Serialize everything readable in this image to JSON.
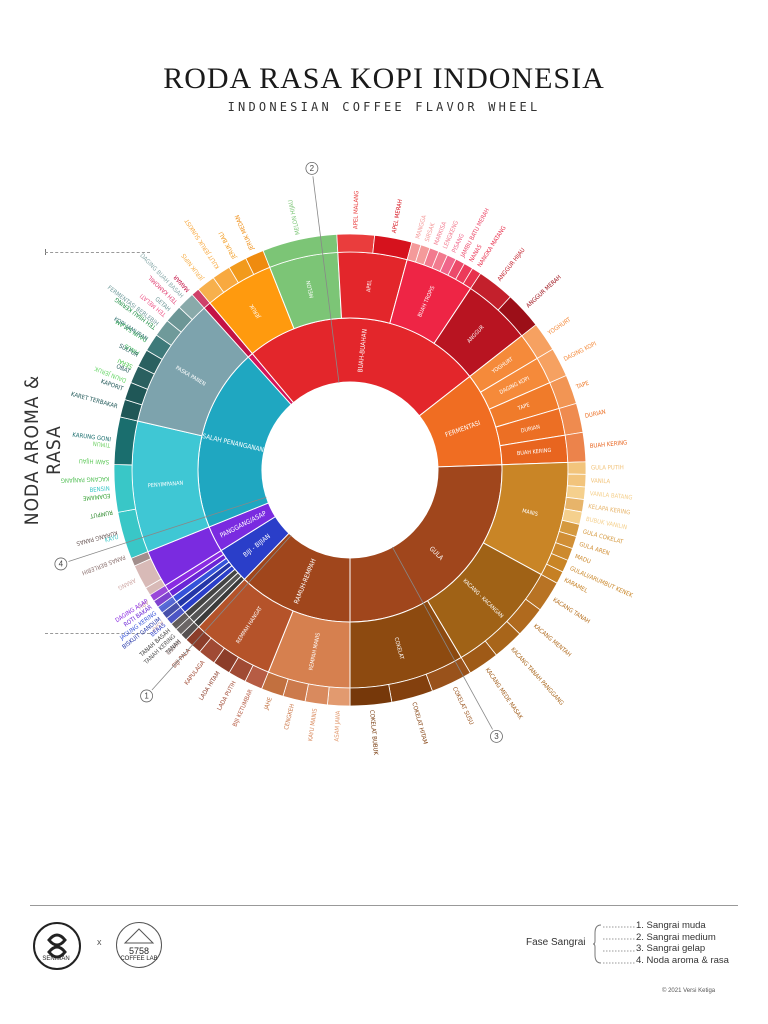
{
  "title": "RODA RASA KOPI INDONESIA",
  "subtitle": "INDONESIAN COFFEE FLAVOR WHEEL",
  "side_label": "NODA AROMA & RASA",
  "legend": {
    "heading": "Fase Sangrai",
    "items": [
      "1. Sangrai muda",
      "2. Sangrai medium",
      "3. Sangrai gelap",
      "4. Noda aroma & rasa"
    ]
  },
  "markers": [
    "1",
    "2",
    "3",
    "4"
  ],
  "logos": {
    "left": "SENIMAN",
    "times": "x",
    "right_num": "5758",
    "right_sub": "COFFEE LAB"
  },
  "copyright": "© 2021 Versi Ketiga",
  "chart_data": {
    "type": "sunburst",
    "title": "RODA RASA KOPI INDONESIA",
    "subtitle": "INDONESIAN COFFEE FLAVOR WHEEL",
    "phases": [
      {
        "phase": "1",
        "color": "#8b1a1a",
        "categories": [
          {
            "name": "PROSES SANGRAI",
            "color": "#5c4a48",
            "span": 36,
            "children": [
              {
                "name": "BAKED",
                "color": "#b99a98",
                "outer": true
              },
              {
                "name": "ASAP",
                "color": "#cfa9a6",
                "outer": true
              },
              {
                "name": "ABU",
                "color": "#cfa9a6",
                "outer": true
              },
              {
                "name": "ARANG",
                "color": "#cfa9a6",
                "outer": true
              },
              {
                "name": "PANAS BERLEBIH",
                "color": "#8c7270"
              },
              {
                "name": "KURANG PANAS",
                "color": "#6b5a58"
              }
            ]
          },
          {
            "name": "REMPAH HIJAU",
            "color": "#23b14a",
            "span": 20,
            "children": [
              {
                "name": "RUMPUT",
                "color": "#2e8b2e"
              },
              {
                "name": "EDAMAME",
                "color": "#3ea53c"
              },
              {
                "name": "KACANG PANJANG",
                "color": "#55c058"
              },
              {
                "name": "SAWI HIJAU",
                "color": "#5fc95a"
              },
              {
                "name": "TIMUN",
                "color": "#76d36c"
              }
            ]
          },
          {
            "name": "SAYUR HIJAU",
            "color": "#3aa93e",
            "span": 12,
            "children": []
          },
          {
            "name": "DAUN HERBAL",
            "color": "#1f9d4f",
            "span": 18,
            "children": [
              {
                "name": "DAUN JERUK",
                "color": "#6ad86a"
              },
              {
                "name": "SERAI",
                "color": "#4cc74c"
              },
              {
                "name": "PINUS",
                "color": "#33b653"
              },
              {
                "name": "DAUN SALAM",
                "color": "#2aa54a"
              },
              {
                "name": "TEH HIJAU KERING",
                "color": "#1d8e43"
              }
            ]
          },
          {
            "name": "BUNGA",
            "color": "#d4145a",
            "span": 12,
            "children": [
              {
                "name": "TEH MELATI",
                "color": "#ee5a8a"
              },
              {
                "name": "TEH KAMOMIL",
                "color": "#e24476"
              },
              {
                "name": "MAWAR",
                "color": "#c41245"
              }
            ]
          }
        ]
      },
      {
        "phase": "2",
        "color": "#ff8c00",
        "categories": [
          {
            "name": "BUAH-BUAHAN",
            "color": "#e3262b",
            "span": 92,
            "children": [
              {
                "name": "JERUK",
                "color": "#ff9a0e",
                "children": [
                  {
                    "name": "JERUK NIPIS",
                    "color": "#f7b04c"
                  },
                  {
                    "name": "KULIT JERUK SUNKIST",
                    "color": "#f8a940"
                  },
                  {
                    "name": "JERUK BALI",
                    "color": "#f29a1c"
                  },
                  {
                    "name": "JERUK MEDAN",
                    "color": "#ef8b0f"
                  }
                ]
              },
              {
                "name": "MELON",
                "color": "#7cc576",
                "children": [
                  {
                    "name": "MELON HIJAU",
                    "color": "#7cc576"
                  }
                ]
              },
              {
                "name": "APEL",
                "color": "#e3262b",
                "children": [
                  {
                    "name": "APEL MALANG",
                    "color": "#ea3d3d"
                  },
                  {
                    "name": "APEL MERAH",
                    "color": "#d6121d"
                  }
                ]
              },
              {
                "name": "BUAH TROPIS",
                "color": "#ee2545",
                "children": [
                  {
                    "name": "MANGGA",
                    "color": "#f49a9a"
                  },
                  {
                    "name": "SIRSAK",
                    "color": "#f49a9a"
                  },
                  {
                    "name": "MARKISA",
                    "color": "#f27a8e"
                  },
                  {
                    "name": "LENGKENG",
                    "color": "#f27a8e"
                  },
                  {
                    "name": "PISANG",
                    "color": "#f0658a"
                  },
                  {
                    "name": "JAMBU BATU MERAH",
                    "color": "#ec4a6a"
                  },
                  {
                    "name": "NANAS",
                    "color": "#ec3a5a"
                  },
                  {
                    "name": "NANGKA MATANG",
                    "color": "#e8314d"
                  }
                ]
              },
              {
                "name": "ANGGUR",
                "color": "#b81421",
                "children": [
                  {
                    "name": "ANGGUR HIJAU",
                    "color": "#c3202c"
                  },
                  {
                    "name": "ANGGUR MERAH",
                    "color": "#9c0f18"
                  }
                ]
              }
            ]
          },
          {
            "name": "FERMENTASI",
            "color": "#f06d22",
            "span": 36,
            "children": [
              {
                "name": "YOGHURT",
                "color": "#f58a3a"
              },
              {
                "name": "DAGING KOPI",
                "color": "#f58a3a"
              },
              {
                "name": "TAPE",
                "color": "#f07b2a"
              },
              {
                "name": "DURIAN",
                "color": "#ec6f24"
              },
              {
                "name": "BUAH KERING",
                "color": "#e8651f"
              }
            ]
          }
        ]
      },
      {
        "phase": "3",
        "color": "#c6781e",
        "categories": [
          {
            "name": "GULA",
            "color": "#a0461c",
            "span": 92,
            "children": [
              {
                "name": "MANIS",
                "color": "#c98526",
                "children": [
                  {
                    "name": "GULA PUTIH",
                    "color": "#f2c47c"
                  },
                  {
                    "name": "VANILA",
                    "color": "#f2c47c"
                  },
                  {
                    "name": "VANILA BATANG",
                    "color": "#f5d08d"
                  },
                  {
                    "name": "KELAPA KERING",
                    "color": "#e7b46a"
                  },
                  {
                    "name": "BUBUK VANILIN",
                    "color": "#f5d08d"
                  },
                  {
                    "name": "GULA COKELAT",
                    "color": "#d5993f"
                  },
                  {
                    "name": "GULA AREN",
                    "color": "#d18f36"
                  },
                  {
                    "name": "MADU",
                    "color": "#cd8a2e"
                  },
                  {
                    "name": "GULALI/ARUMBUT KENEK",
                    "color": "#c98526"
                  },
                  {
                    "name": "KARAMEL",
                    "color": "#c68024"
                  }
                ]
              },
              {
                "name": "KACANG - KACANGAN",
                "color": "#a06216",
                "children": [
                  {
                    "name": "KACANG TANAH",
                    "color": "#b87324"
                  },
                  {
                    "name": "KACANG MENTAH",
                    "color": "#b06a1e"
                  },
                  {
                    "name": "KACANG TANAH PANGGANG",
                    "color": "#a8651a"
                  },
                  {
                    "name": "KACANG MEDE MASAK",
                    "color": "#9f5a17"
                  }
                ]
              },
              {
                "name": "COKELAT",
                "color": "#8d4a10",
                "children": [
                  {
                    "name": "COKELAT SUSU",
                    "color": "#99521b"
                  },
                  {
                    "name": "COKELAT HITAM",
                    "color": "#83400e"
                  },
                  {
                    "name": "COKELAT BUBUK",
                    "color": "#76380a"
                  }
                ]
              }
            ]
          },
          {
            "name": "RAMUH-REMPAH",
            "color": "#a0461c",
            "span": 44,
            "children": [
              {
                "name": "REMPAH MANIS",
                "color": "#d6804f",
                "children": [
                  {
                    "name": "ASAM JAWA",
                    "color": "#e29a6f"
                  },
                  {
                    "name": "KAYU MANIS",
                    "color": "#d98a5e"
                  },
                  {
                    "name": "CENGKEH",
                    "color": "#cc7a4c"
                  },
                  {
                    "name": "JAHE",
                    "color": "#c2703f"
                  }
                ]
              },
              {
                "name": "REMPAH HANGAT",
                "color": "#b5532a",
                "children": [
                  {
                    "name": "BIJI KETUMBAR",
                    "color": "#b65c44"
                  },
                  {
                    "name": "LADA PUTIH",
                    "color": "#a04a34"
                  },
                  {
                    "name": "LADA HITAM",
                    "color": "#8c3d2a"
                  },
                  {
                    "name": "KAPULAGA",
                    "color": "#a04a34"
                  },
                  {
                    "name": "BIJI PALA",
                    "color": "#8c3d2a"
                  }
                ]
              }
            ]
          }
        ]
      },
      {
        "phase": "4",
        "color": "#4a4a4a",
        "categories": [
          {
            "name": "BIJI - BIJIAN",
            "color": "#2a3ec9",
            "span": 14,
            "children": [
              {
                "name": "TANAH",
                "color": "#3b3b3b"
              },
              {
                "name": "TANAH KERING",
                "color": "#555555"
              },
              {
                "name": "TANAH BASAH",
                "color": "#444444"
              },
              {
                "name": "BERAS",
                "color": "#2a3ec9"
              },
              {
                "name": "BISKUIT GANDUM",
                "color": "#2436a8"
              },
              {
                "name": "JAGUNG KERING",
                "color": "#3552d9"
              },
              {
                "name": "ROTI BAKAR",
                "color": "#6a25d6"
              },
              {
                "name": "DAGING ASAP",
                "color": "#8a2be2"
              }
            ]
          },
          {
            "name": "PANGGANG/ASAP",
            "color": "#7a2be0",
            "span": 10,
            "children": []
          },
          {
            "name": "SALAH PENANGANAN",
            "color": "#1fa7c1",
            "span": 70,
            "children": [
              {
                "name": "PENYIMPANAN",
                "color": "#3fc7d4",
                "children": [
                  {
                    "name": "KAYU",
                    "color": "#39c7c7"
                  },
                  {
                    "name": "BENSIN",
                    "color": "#39c7c7"
                  },
                  {
                    "name": "KARUNG GONI",
                    "color": "#1a6e6e"
                  }
                ]
              },
              {
                "name": "PASKA PANEN",
                "color": "#7da3ad",
                "children": [
                  {
                    "name": "KARET TERBAKAR",
                    "color": "#1f5757"
                  },
                  {
                    "name": "KAPORIT",
                    "color": "#1f5757"
                  },
                  {
                    "name": "OBAT",
                    "color": "#2a6060"
                  },
                  {
                    "name": "SULFUR",
                    "color": "#2a6060"
                  },
                  {
                    "name": "KOPI JAMURAN",
                    "color": "#3e7a7a"
                  },
                  {
                    "name": "FERMENTASI BERLEBIH",
                    "color": "#6f9a9a",
                    "children": [
                      {
                        "name": "BUAH BUSUK",
                        "color": "#5f8f8f"
                      },
                      {
                        "name": "CUKA",
                        "color": "#7aa3a3"
                      },
                      {
                        "name": "NANGKA TERLALU MATANG",
                        "color": "#9ab8b8"
                      }
                    ]
                  },
                  {
                    "name": "GETAH",
                    "color": "#6c9696"
                  },
                  {
                    "name": "DAGING BUAH BASAH",
                    "color": "#89aaaa"
                  }
                ]
              }
            ]
          }
        ]
      }
    ]
  }
}
